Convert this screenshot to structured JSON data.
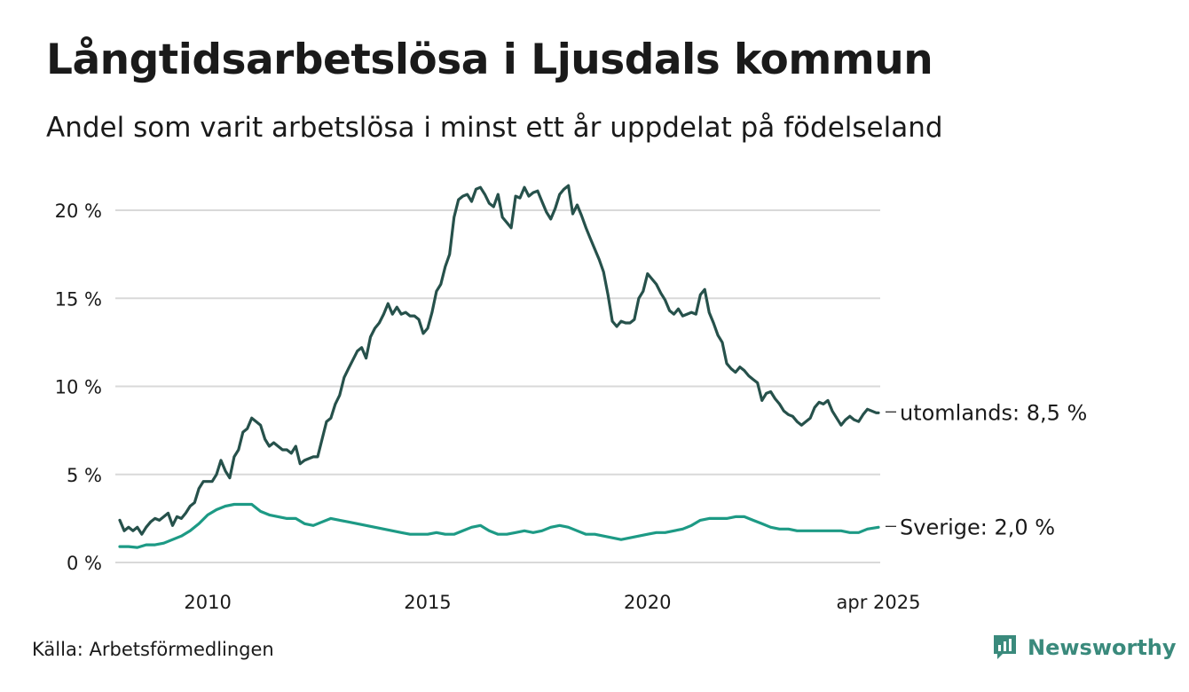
{
  "chart_data": {
    "type": "line",
    "title": "Långtidsarbetslösa i Ljusdals kommun",
    "subtitle": "Andel som varit arbetslösa i minst ett år uppdelat på födelseland",
    "source": "Källa: Arbetsförmedlingen",
    "brand": "Newsworthy",
    "ylim": [
      0,
      21.5
    ],
    "xlim": [
      2008.0,
      2025.3
    ],
    "yticks": [
      {
        "value": 0,
        "label": "0 %"
      },
      {
        "value": 5,
        "label": "5 %"
      },
      {
        "value": 10,
        "label": "10 %"
      },
      {
        "value": 15,
        "label": "15 %"
      },
      {
        "value": 20,
        "label": "20 %"
      }
    ],
    "xticks": [
      {
        "value": 2010,
        "label": "2010"
      },
      {
        "value": 2015,
        "label": "2015"
      },
      {
        "value": 2020,
        "label": "2020"
      },
      {
        "value": 2025.25,
        "label": "apr 2025"
      }
    ],
    "grid": true,
    "series": [
      {
        "name": "utomlands",
        "end_label": "utomlands: 8,5 %",
        "color": "#26514b",
        "x": [
          2008.0,
          2008.1,
          2008.2,
          2008.3,
          2008.4,
          2008.5,
          2008.6,
          2008.7,
          2008.8,
          2008.9,
          2009.0,
          2009.1,
          2009.2,
          2009.3,
          2009.4,
          2009.5,
          2009.6,
          2009.7,
          2009.8,
          2009.9,
          2010.0,
          2010.1,
          2010.2,
          2010.3,
          2010.4,
          2010.5,
          2010.6,
          2010.7,
          2010.8,
          2010.9,
          2011.0,
          2011.1,
          2011.2,
          2011.3,
          2011.4,
          2011.5,
          2011.6,
          2011.7,
          2011.8,
          2011.9,
          2012.0,
          2012.1,
          2012.2,
          2012.3,
          2012.4,
          2012.5,
          2012.6,
          2012.7,
          2012.8,
          2012.9,
          2013.0,
          2013.1,
          2013.2,
          2013.3,
          2013.4,
          2013.5,
          2013.6,
          2013.7,
          2013.8,
          2013.9,
          2014.0,
          2014.1,
          2014.2,
          2014.3,
          2014.4,
          2014.5,
          2014.6,
          2014.7,
          2014.8,
          2014.9,
          2015.0,
          2015.1,
          2015.2,
          2015.3,
          2015.4,
          2015.5,
          2015.6,
          2015.7,
          2015.8,
          2015.9,
          2016.0,
          2016.1,
          2016.2,
          2016.3,
          2016.4,
          2016.5,
          2016.6,
          2016.7,
          2016.8,
          2016.9,
          2017.0,
          2017.1,
          2017.2,
          2017.3,
          2017.4,
          2017.5,
          2017.6,
          2017.7,
          2017.8,
          2017.9,
          2018.0,
          2018.1,
          2018.2,
          2018.3,
          2018.4,
          2018.5,
          2018.6,
          2018.7,
          2018.8,
          2018.9,
          2019.0,
          2019.1,
          2019.2,
          2019.3,
          2019.4,
          2019.5,
          2019.6,
          2019.7,
          2019.8,
          2019.9,
          2020.0,
          2020.1,
          2020.2,
          2020.3,
          2020.4,
          2020.5,
          2020.6,
          2020.7,
          2020.8,
          2020.9,
          2021.0,
          2021.1,
          2021.2,
          2021.3,
          2021.4,
          2021.5,
          2021.6,
          2021.7,
          2021.8,
          2021.9,
          2022.0,
          2022.1,
          2022.2,
          2022.3,
          2022.4,
          2022.5,
          2022.6,
          2022.7,
          2022.8,
          2022.9,
          2023.0,
          2023.1,
          2023.2,
          2023.3,
          2023.4,
          2023.5,
          2023.6,
          2023.7,
          2023.8,
          2023.9,
          2024.0,
          2024.1,
          2024.2,
          2024.3,
          2024.4,
          2024.5,
          2024.6,
          2024.7,
          2024.8,
          2024.9,
          2025.0,
          2025.1,
          2025.2,
          2025.25
        ],
        "values": [
          2.4,
          1.8,
          2.0,
          1.8,
          2.0,
          1.6,
          2.0,
          2.3,
          2.5,
          2.4,
          2.6,
          2.8,
          2.1,
          2.6,
          2.5,
          2.8,
          3.2,
          3.4,
          4.2,
          4.6,
          4.6,
          4.6,
          5.0,
          5.8,
          5.2,
          4.8,
          6.0,
          6.4,
          7.4,
          7.6,
          8.2,
          8.0,
          7.8,
          7.0,
          6.6,
          6.8,
          6.6,
          6.4,
          6.4,
          6.2,
          6.6,
          5.6,
          5.8,
          5.9,
          6.0,
          6.0,
          7.0,
          8.0,
          8.2,
          9.0,
          9.5,
          10.5,
          11.0,
          11.5,
          12.0,
          12.2,
          11.6,
          12.8,
          13.3,
          13.6,
          14.1,
          14.7,
          14.1,
          14.5,
          14.1,
          14.2,
          14.0,
          14.0,
          13.8,
          13.0,
          13.3,
          14.2,
          15.4,
          15.8,
          16.8,
          17.5,
          19.6,
          20.6,
          20.8,
          20.9,
          20.5,
          21.2,
          21.3,
          20.9,
          20.4,
          20.2,
          20.9,
          19.6,
          19.3,
          19.0,
          20.8,
          20.7,
          21.3,
          20.8,
          21.0,
          21.1,
          20.5,
          19.9,
          19.5,
          20.1,
          20.9,
          21.2,
          21.4,
          19.8,
          20.3,
          19.7,
          19.0,
          18.4,
          17.8,
          17.2,
          16.5,
          15.2,
          13.7,
          13.4,
          13.7,
          13.6,
          13.6,
          13.8,
          15.0,
          15.4,
          16.4,
          16.1,
          15.8,
          15.3,
          14.9,
          14.3,
          14.1,
          14.4,
          14.0,
          14.1,
          14.2,
          14.1,
          15.2,
          15.5,
          14.2,
          13.6,
          12.9,
          12.5,
          11.3,
          11.0,
          10.8,
          11.1,
          10.9,
          10.6,
          10.4,
          10.2,
          9.2,
          9.6,
          9.7,
          9.3,
          9.0,
          8.6,
          8.4,
          8.3,
          8.0,
          7.8,
          8.0,
          8.2,
          8.8,
          9.1,
          9.0,
          9.2,
          8.6,
          8.2,
          7.8,
          8.1,
          8.3,
          8.1,
          8.0,
          8.4,
          8.7,
          8.6,
          8.5,
          8.5
        ]
      },
      {
        "name": "Sverige",
        "end_label": "Sverige: 2,0 %",
        "color": "#1d9a85",
        "x": [
          2008.0,
          2008.2,
          2008.4,
          2008.6,
          2008.8,
          2009.0,
          2009.2,
          2009.4,
          2009.6,
          2009.8,
          2010.0,
          2010.2,
          2010.4,
          2010.6,
          2010.8,
          2011.0,
          2011.2,
          2011.4,
          2011.6,
          2011.8,
          2012.0,
          2012.2,
          2012.4,
          2012.6,
          2012.8,
          2013.0,
          2013.2,
          2013.4,
          2013.6,
          2013.8,
          2014.0,
          2014.2,
          2014.4,
          2014.6,
          2014.8,
          2015.0,
          2015.2,
          2015.4,
          2015.6,
          2015.8,
          2016.0,
          2016.2,
          2016.4,
          2016.6,
          2016.8,
          2017.0,
          2017.2,
          2017.4,
          2017.6,
          2017.8,
          2018.0,
          2018.2,
          2018.4,
          2018.6,
          2018.8,
          2019.0,
          2019.2,
          2019.4,
          2019.6,
          2019.8,
          2020.0,
          2020.2,
          2020.4,
          2020.6,
          2020.8,
          2021.0,
          2021.2,
          2021.4,
          2021.6,
          2021.8,
          2022.0,
          2022.2,
          2022.4,
          2022.6,
          2022.8,
          2023.0,
          2023.2,
          2023.4,
          2023.6,
          2023.8,
          2024.0,
          2024.2,
          2024.4,
          2024.6,
          2024.8,
          2025.0,
          2025.25
        ],
        "values": [
          0.9,
          0.9,
          0.85,
          1.0,
          1.0,
          1.1,
          1.3,
          1.5,
          1.8,
          2.2,
          2.7,
          3.0,
          3.2,
          3.3,
          3.3,
          3.3,
          2.9,
          2.7,
          2.6,
          2.5,
          2.5,
          2.2,
          2.1,
          2.3,
          2.5,
          2.4,
          2.3,
          2.2,
          2.1,
          2.0,
          1.9,
          1.8,
          1.7,
          1.6,
          1.6,
          1.6,
          1.7,
          1.6,
          1.6,
          1.8,
          2.0,
          2.1,
          1.8,
          1.6,
          1.6,
          1.7,
          1.8,
          1.7,
          1.8,
          2.0,
          2.1,
          2.0,
          1.8,
          1.6,
          1.6,
          1.5,
          1.4,
          1.3,
          1.4,
          1.5,
          1.6,
          1.7,
          1.7,
          1.8,
          1.9,
          2.1,
          2.4,
          2.5,
          2.5,
          2.5,
          2.6,
          2.6,
          2.4,
          2.2,
          2.0,
          1.9,
          1.9,
          1.8,
          1.8,
          1.8,
          1.8,
          1.8,
          1.8,
          1.7,
          1.7,
          1.9,
          2.0
        ]
      }
    ]
  }
}
